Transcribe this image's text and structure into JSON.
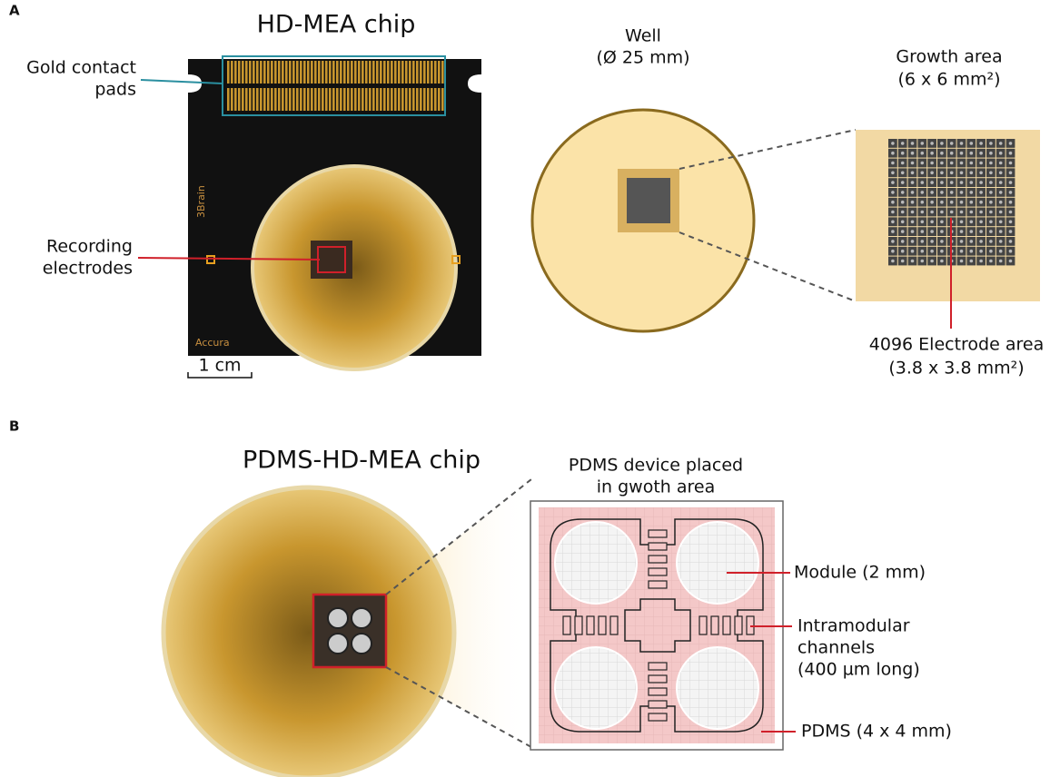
{
  "panel_a": {
    "label": "A",
    "chip_title": "HD-MEA chip",
    "pads_label": [
      "Gold contact",
      "pads"
    ],
    "electrodes_label": [
      "Recording",
      "electrodes"
    ],
    "scale_bar": "1 cm",
    "brand": "3Brain",
    "model": "Accura",
    "well_label": [
      "Well",
      "(Ø 25 mm)"
    ],
    "growth_label": [
      "Growth area",
      "(6 x 6 mm²)"
    ],
    "electrode_area_label": [
      "4096 Electrode area",
      "(3.8 x 3.8 mm²)"
    ]
  },
  "panel_b": {
    "label": "B",
    "chip_title": "PDMS-HD-MEA chip",
    "device_label": [
      "PDMS device placed",
      "in gwoth area"
    ],
    "module_label": "Module (2 mm)",
    "channels_label": [
      "Intramodular",
      "channels",
      "(400 µm long)"
    ],
    "pdms_label": "PDMS (4 x 4 mm)"
  }
}
